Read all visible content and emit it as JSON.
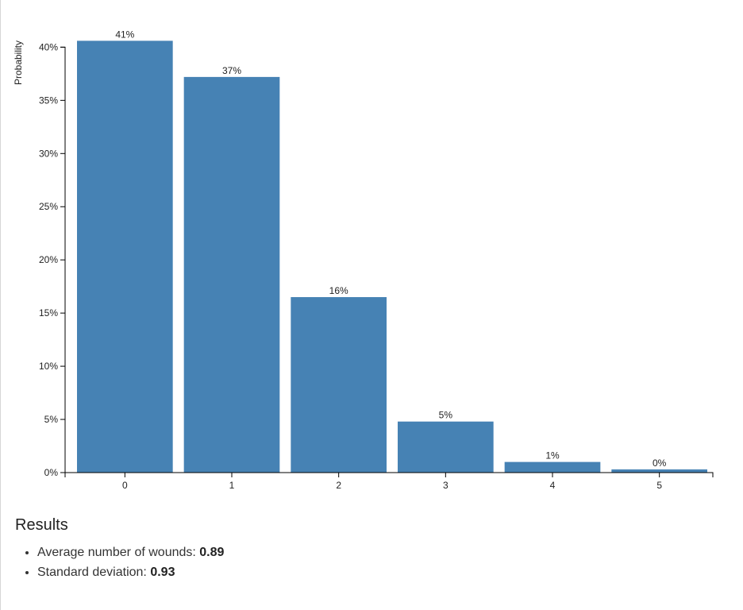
{
  "chart_data": {
    "type": "bar",
    "categories": [
      "0",
      "1",
      "2",
      "3",
      "4",
      "5"
    ],
    "values": [
      40.6,
      37.2,
      16.5,
      4.8,
      1.0,
      0.3
    ],
    "data_labels": [
      "41%",
      "37%",
      "16%",
      "5%",
      "1%",
      "0%"
    ],
    "ylabel": "Probability",
    "xlabel": "",
    "ylim": [
      0,
      41
    ],
    "yticks": [
      0,
      5,
      10,
      15,
      20,
      25,
      30,
      35,
      40
    ],
    "ytick_labels": [
      "0%",
      "5%",
      "10%",
      "15%",
      "20%",
      "25%",
      "30%",
      "35%",
      "40%"
    ],
    "bar_color": "#4682b4",
    "grid": false
  },
  "results": {
    "heading": "Results",
    "items": [
      {
        "label": "Average number of wounds:",
        "value": "0.89"
      },
      {
        "label": "Standard deviation:",
        "value": "0.93"
      }
    ]
  }
}
